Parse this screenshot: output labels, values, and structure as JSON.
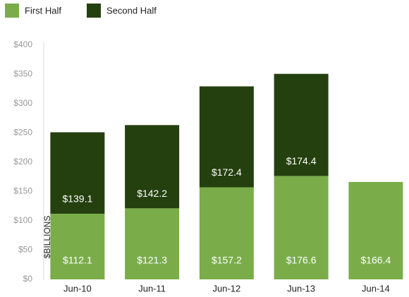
{
  "chart_data": {
    "type": "stacked_bar",
    "categories": [
      "Jun-10",
      "Jun-11",
      "Jun-12",
      "Jun-13",
      "Jun-14"
    ],
    "series": [
      {
        "name": "First Half",
        "color": "#7aad4a",
        "values": [
          112.1,
          121.3,
          157.2,
          176.6,
          166.4
        ],
        "value_labels": [
          "$112.1",
          "$121.3",
          "$157.2",
          "$176.6",
          "$166.4"
        ]
      },
      {
        "name": "Second Half",
        "color": "#24400f",
        "values": [
          139.1,
          142.2,
          172.4,
          174.4,
          null
        ],
        "value_labels": [
          "$139.1",
          "$142.2",
          "$172.4",
          "$174.4",
          null
        ]
      }
    ],
    "ylabel": "$BILLIONS",
    "ylim": [
      0,
      400
    ],
    "yticks": [
      {
        "value": 0,
        "label": "$0"
      },
      {
        "value": 50,
        "label": "$50"
      },
      {
        "value": 100,
        "label": "$100"
      },
      {
        "value": 150,
        "label": "$150"
      },
      {
        "value": 200,
        "label": "$200"
      },
      {
        "value": 250,
        "label": "$250"
      },
      {
        "value": 300,
        "label": "$300"
      },
      {
        "value": 350,
        "label": "$350"
      },
      {
        "value": 400,
        "label": "$400"
      }
    ],
    "grid": false
  }
}
